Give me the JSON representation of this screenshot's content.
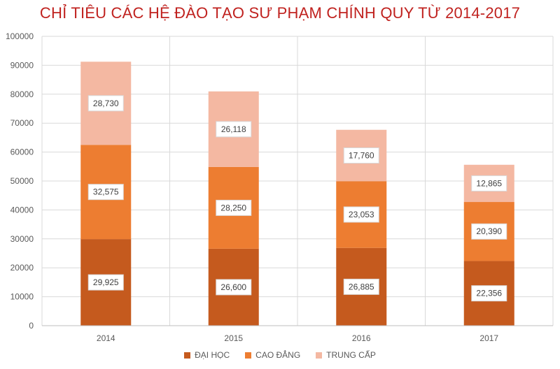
{
  "chart_data": {
    "type": "bar",
    "stacked": true,
    "title": "CHỈ TIÊU CÁC HỆ ĐÀO TẠO SƯ PHẠM CHÍNH QUY TỪ 2014-2017",
    "xlabel": "",
    "ylabel": "",
    "categories": [
      "2014",
      "2015",
      "2016",
      "2017"
    ],
    "ylim": [
      0,
      100000
    ],
    "yticks": [
      "0",
      "10000",
      "20000",
      "30000",
      "40000",
      "50000",
      "60000",
      "70000",
      "80000",
      "90000",
      "100000"
    ],
    "grid": true,
    "legend_position": "bottom",
    "series": [
      {
        "name": "ĐẠI HỌC",
        "color": "#c55a1e",
        "values": [
          29925,
          26600,
          26885,
          22356
        ],
        "labels": [
          "29,925",
          "26,600",
          "26,885",
          "22,356"
        ]
      },
      {
        "name": "CAO ĐẲNG",
        "color": "#ed7d31",
        "values": [
          32575,
          28250,
          23053,
          20390
        ],
        "labels": [
          "32,575",
          "28,250",
          "23,053",
          "20,390"
        ]
      },
      {
        "name": "TRUNG CẤP",
        "color": "#f4b8a2",
        "values": [
          28730,
          26118,
          17760,
          12865
        ],
        "labels": [
          "28,730",
          "26,118",
          "17,760",
          "12,865"
        ]
      }
    ]
  }
}
